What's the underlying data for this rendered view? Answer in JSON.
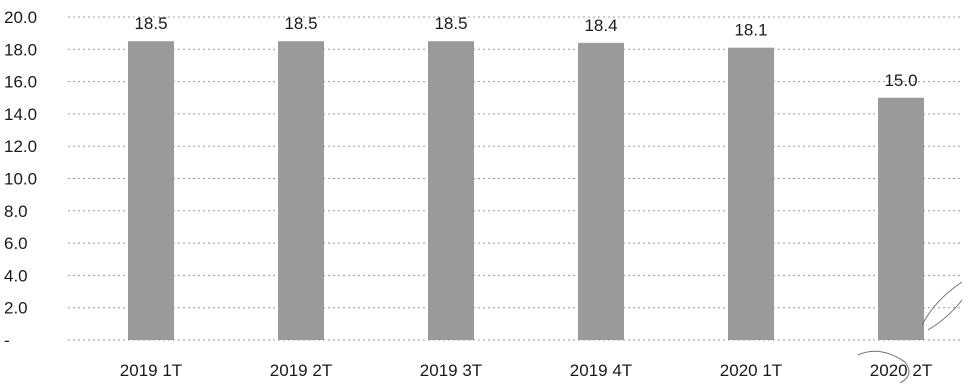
{
  "chart_data": {
    "type": "bar",
    "categories": [
      "2019 1T",
      "2019 2T",
      "2019 3T",
      "2019 4T",
      "2020 1T",
      "2020 2T"
    ],
    "values": [
      18.5,
      18.5,
      18.5,
      18.4,
      18.1,
      15.0
    ],
    "data_labels": [
      "18.5",
      "18.5",
      "18.5",
      "18.4",
      "18.1",
      "15.0"
    ],
    "yticks": [
      0,
      2,
      4,
      6,
      8,
      10,
      12,
      14,
      16,
      18,
      20
    ],
    "ytick_labels": [
      "-",
      "2.0",
      "4.0",
      "6.0",
      "8.0",
      "10.0",
      "12.0",
      "14.0",
      "16.0",
      "18.0",
      "20.0"
    ],
    "ylim": [
      0,
      20
    ],
    "grid": true,
    "legend": "none",
    "colors": {
      "bar": "#9a9a9a",
      "grid": "#9a9a9a",
      "text": "#1a1a1a"
    }
  }
}
